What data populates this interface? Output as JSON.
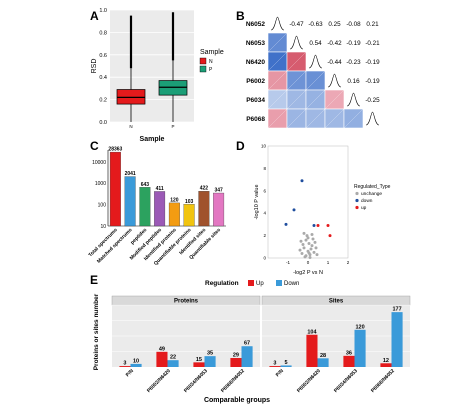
{
  "chart_data": [
    {
      "panel": "A",
      "type": "box",
      "xlabel": "Sample",
      "ylabel": "RSD",
      "categories": [
        "N",
        "P"
      ],
      "ylim": [
        0.0,
        1.0
      ],
      "yticks": [
        "0.0",
        "0.2",
        "0.4",
        "0.6",
        "0.8",
        "1.0"
      ],
      "legend": {
        "title": "Sample",
        "entries": [
          "N",
          "P"
        ]
      },
      "boxes": [
        {
          "name": "N",
          "color": "#e41a1c",
          "min": 0.0,
          "q1": 0.16,
          "median": 0.22,
          "q3": 0.29,
          "max": 0.48,
          "outlier_high": 0.95
        },
        {
          "name": "P",
          "color": "#1b9e77",
          "min": 0.0,
          "q1": 0.24,
          "median": 0.31,
          "q3": 0.37,
          "max": 0.55,
          "outlier_high": 0.98
        }
      ]
    },
    {
      "panel": "B",
      "type": "heatmap",
      "samples": [
        "N6052",
        "N6053",
        "N6420",
        "P6002",
        "P6034",
        "P6068"
      ],
      "upper_values": [
        [
          "-0.47",
          "-0.63",
          "0.25",
          "-0.08",
          "0.21"
        ],
        [
          "0.54",
          "-0.42",
          "-0.19",
          "-0.21"
        ],
        [
          "-0.44",
          "-0.23",
          "-0.19"
        ],
        [
          "0.16",
          "-0.19"
        ],
        [
          "-0.25"
        ]
      ]
    },
    {
      "panel": "C",
      "type": "bar",
      "ylim_log": [
        10,
        10000
      ],
      "yticks": [
        "10",
        "100",
        "1000",
        "10000"
      ],
      "categories": [
        "Total spectrums",
        "Matched spectrums",
        "peptides",
        "Modified peptides",
        "Identified proteins",
        "Quantifiable proteins",
        "Identified sites",
        "Quantifiable sites"
      ],
      "values": [
        28363,
        2041,
        643,
        411,
        120,
        103,
        422,
        347
      ],
      "labels": [
        "28363",
        "2041",
        "643",
        "411",
        "120",
        "103",
        "422",
        "347"
      ],
      "colors": [
        "#e41a1c",
        "#3a9ad9",
        "#2ca25f",
        "#9b59b6",
        "#f39c12",
        "#f1c40f",
        "#a0522d",
        "#e377c2"
      ]
    },
    {
      "panel": "D",
      "type": "scatter",
      "xlabel": "-log2 P vs N",
      "ylabel": "-log10 P value",
      "xlim": [
        -2,
        2
      ],
      "ylim": [
        0,
        10
      ],
      "xticks": [
        "-1",
        "0",
        "1",
        "2"
      ],
      "yticks": [
        "0",
        "2",
        "4",
        "6",
        "8",
        "10"
      ],
      "legend": {
        "title": "Regulated_Type",
        "entries": [
          "unchange",
          "down",
          "up"
        ],
        "colors": [
          "#aaaaaa",
          "#1f4e9e",
          "#e41a1c"
        ]
      },
      "points_down": [
        [
          -0.3,
          6.9
        ],
        [
          -0.7,
          4.3
        ],
        [
          -1.1,
          3.0
        ],
        [
          0.3,
          2.9
        ]
      ],
      "points_up": [
        [
          0.5,
          2.9
        ],
        [
          1.0,
          2.9
        ],
        [
          1.1,
          2.0
        ]
      ],
      "points_unchange": [
        [
          -0.1,
          0.2
        ],
        [
          0.1,
          0.3
        ],
        [
          0.0,
          0.6
        ],
        [
          -0.2,
          0.9
        ],
        [
          0.2,
          1.1
        ],
        [
          0.05,
          1.3
        ],
        [
          -0.3,
          0.4
        ],
        [
          0.3,
          0.5
        ],
        [
          -0.1,
          1.6
        ],
        [
          0.15,
          0.8
        ],
        [
          -0.25,
          1.2
        ],
        [
          0.35,
          1.4
        ],
        [
          0.0,
          1.8
        ],
        [
          -0.4,
          0.7
        ],
        [
          0.4,
          0.9
        ],
        [
          -0.05,
          2.0
        ],
        [
          0.25,
          1.7
        ],
        [
          -0.15,
          0.1
        ],
        [
          0.1,
          0.05
        ],
        [
          -0.35,
          1.5
        ],
        [
          0.45,
          0.3
        ],
        [
          0.2,
          2.1
        ],
        [
          -0.2,
          2.2
        ],
        [
          0.05,
          0.45
        ]
      ]
    },
    {
      "panel": "E",
      "type": "bar",
      "ylabel": "Proteins or sites number",
      "xlabel": "Comparable groups",
      "legend": {
        "title": "Regulation",
        "entries": [
          "Up",
          "Down"
        ],
        "colors": [
          "#e41a1c",
          "#3a9ad9"
        ]
      },
      "facets": [
        {
          "title": "Proteins",
          "categories": [
            "P/N",
            "P6002/N6420",
            "P6034/N6053",
            "P6068/N6052"
          ],
          "series": [
            {
              "name": "Up",
              "values": [
                3,
                49,
                15,
                29
              ],
              "labels": [
                "3",
                "49",
                "15",
                "29"
              ]
            },
            {
              "name": "Down",
              "values": [
                10,
                22,
                35,
                67
              ],
              "labels": [
                "10",
                "22",
                "35",
                "67"
              ]
            }
          ]
        },
        {
          "title": "Sites",
          "categories": [
            "P/N",
            "P6002/N6420",
            "P6034/N6053",
            "P6068/N6052"
          ],
          "series": [
            {
              "name": "Up",
              "values": [
                3,
                104,
                36,
                12
              ],
              "labels": [
                "3",
                "104",
                "36",
                "12"
              ]
            },
            {
              "name": "Down",
              "values": [
                5,
                28,
                120,
                177
              ],
              "labels": [
                "5",
                "28",
                "120",
                "177"
              ]
            }
          ]
        }
      ],
      "ylim": [
        0,
        200
      ]
    }
  ],
  "panel_labels": [
    "A",
    "B",
    "C",
    "D",
    "E"
  ]
}
